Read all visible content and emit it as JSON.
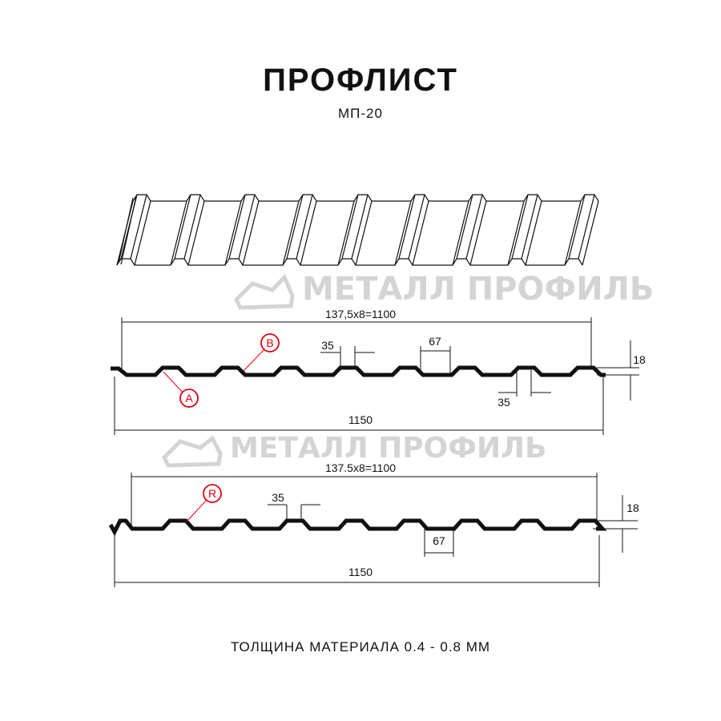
{
  "header": {
    "title": "ПРОФЛИСТ",
    "subtitle": "МП-20"
  },
  "watermark": {
    "text": "МЕТАЛЛ ПРОФИЛЬ",
    "color": "#d4d4d4"
  },
  "profile_a": {
    "pitch_label": "137,5x8=1100",
    "width_label": "1150",
    "crest_top_label": "35",
    "trough_label": "67",
    "crest_bottom_label": "35",
    "height_label": "18",
    "callouts": [
      "A",
      "B"
    ]
  },
  "profile_r": {
    "pitch_label": "137.5x8=1100",
    "width_label": "1150",
    "crest_top_label": "35",
    "trough_label": "67",
    "height_label": "18",
    "callouts": [
      "R"
    ]
  },
  "footer": {
    "text": "ТОЛЩИНА МАТЕРИАЛА 0.4 - 0.8 ММ"
  },
  "colors": {
    "line": "#111111",
    "callout": "#e3000f"
  }
}
